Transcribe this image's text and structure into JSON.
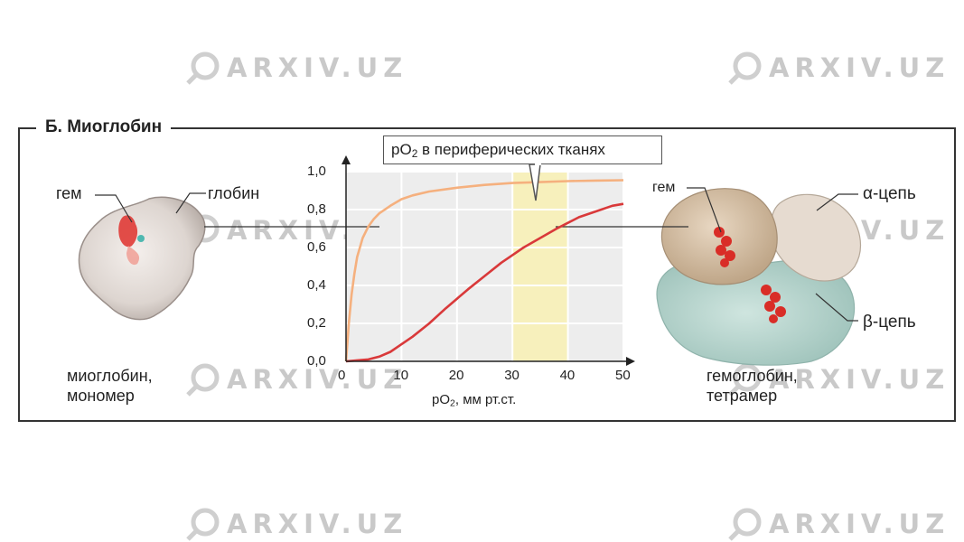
{
  "watermarks": [
    "ARXIV.UZ",
    "ARXIV.UZ",
    "ARXIV.UZ",
    "ARXIV.UZ",
    "ARXIV.UZ",
    "ARXIV.UZ",
    "ARXIV.UZ",
    "ARXIV.UZ"
  ],
  "panel": {
    "title": "Б. Миоглобин"
  },
  "myoglobin": {
    "heme_label": "гем",
    "globin_label": "глобин",
    "caption_line1": "миоглобин,",
    "caption_line2": "мономер"
  },
  "hemoglobin": {
    "heme_label": "гем",
    "alpha_label": "α-цепь",
    "beta_label": "β-цепь",
    "caption_line1": "гемоглобин,",
    "caption_line2": "тетрамер"
  },
  "callout": {
    "prefix": "pO",
    "sub": "2",
    "suffix": " в периферических тканях"
  },
  "chart_data": {
    "type": "line",
    "xlabel_prefix": "pO",
    "xlabel_sub": "2",
    "xlabel_suffix": ", мм рт.ст.",
    "xlim": [
      0,
      50
    ],
    "ylim": [
      0,
      1
    ],
    "x_ticks": [
      "0",
      "10",
      "20",
      "30",
      "40",
      "50"
    ],
    "y_ticks": [
      "0,0",
      "0,2",
      "0,4",
      "0,6",
      "0,8",
      "1,0"
    ],
    "grid": true,
    "highlight_range": [
      30,
      40
    ],
    "series": [
      {
        "color": "#f5b07e",
        "x": [
          0,
          0.5,
          1,
          1.5,
          2,
          3,
          4,
          5,
          6,
          8,
          10,
          12,
          15,
          20,
          25,
          30,
          35,
          40,
          45,
          50
        ],
        "y": [
          0,
          0.2,
          0.35,
          0.46,
          0.55,
          0.65,
          0.71,
          0.75,
          0.78,
          0.82,
          0.855,
          0.875,
          0.895,
          0.915,
          0.93,
          0.94,
          0.945,
          0.95,
          0.953,
          0.955
        ]
      },
      {
        "color": "#d9393a",
        "x": [
          0,
          2,
          4,
          6,
          8,
          10,
          12,
          15,
          18,
          20,
          22,
          25,
          28,
          30,
          32,
          35,
          38,
          40,
          42,
          45,
          48,
          50
        ],
        "y": [
          0,
          0.005,
          0.01,
          0.025,
          0.05,
          0.09,
          0.13,
          0.2,
          0.28,
          0.33,
          0.38,
          0.45,
          0.52,
          0.56,
          0.6,
          0.65,
          0.7,
          0.73,
          0.76,
          0.79,
          0.82,
          0.83
        ]
      }
    ]
  }
}
